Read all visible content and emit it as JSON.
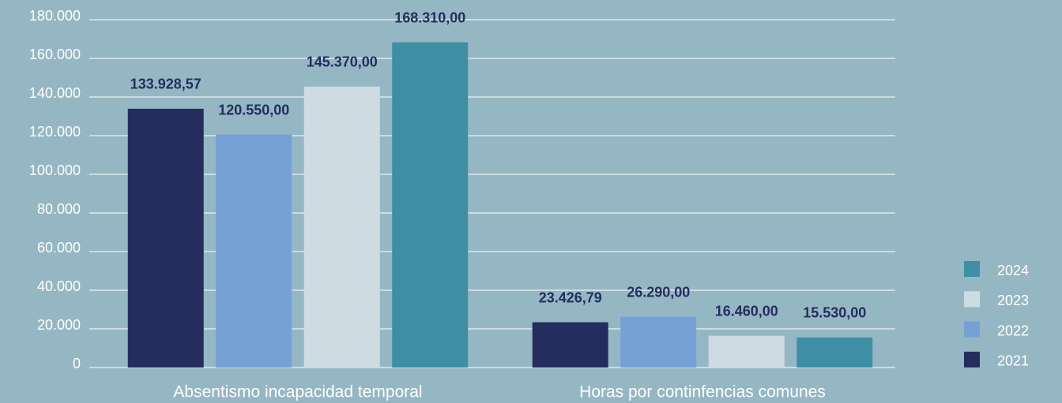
{
  "chart_data": {
    "type": "bar",
    "categories": [
      "Absentismo incapacidad temporal",
      "Horas por continfencias comunes"
    ],
    "series": [
      {
        "name": "2021",
        "color": "#252d5e",
        "values": [
          133928.57,
          23426.79
        ],
        "value_labels": [
          "133.928,57",
          "23.426,79"
        ]
      },
      {
        "name": "2022",
        "color": "#76a1d6",
        "values": [
          120550,
          26290
        ],
        "value_labels": [
          "120.550,00",
          "26.290,00"
        ]
      },
      {
        "name": "2023",
        "color": "#cfdbe3",
        "values": [
          145370,
          16460
        ],
        "value_labels": [
          "145.370,00",
          "16.460,00"
        ]
      },
      {
        "name": "2024",
        "color": "#3e8fa3",
        "values": [
          168310,
          15530
        ],
        "value_labels": [
          "168.310,00",
          "15.530,00"
        ]
      }
    ],
    "ylim": [
      0,
      180000
    ],
    "yticks": [
      0,
      {
        "value": 20000,
        "label": "20.000"
      },
      {
        "value": 40000,
        "label": "40.000"
      },
      {
        "value": 60000,
        "label": "60.000"
      },
      {
        "value": 80000,
        "label": "80.000"
      },
      {
        "value": 100000,
        "label": "100.000"
      },
      {
        "value": 120000,
        "label": "120.000"
      },
      {
        "value": 140000,
        "label": "140.000"
      },
      {
        "value": 160000,
        "label": "160.000"
      },
      {
        "value": 180000,
        "label": "180.000"
      }
    ],
    "grid": true,
    "legend": "right",
    "legend_order": "reversed"
  }
}
